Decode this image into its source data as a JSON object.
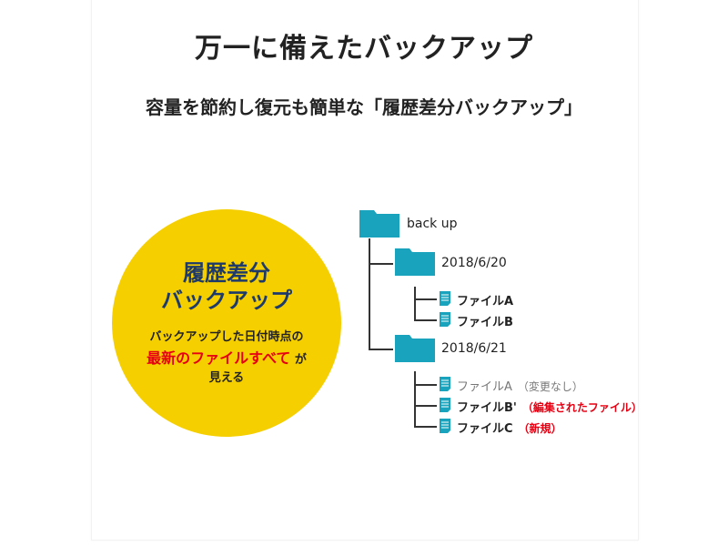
{
  "title": "万一に備えたバックアップ",
  "subtitle": "容量を節約し復元も簡単な「履歴差分バックアップ」",
  "circle": {
    "heading_line1": "履歴差分",
    "heading_line2": "バックアップ",
    "text_line1": "バックアップした日付時点の",
    "text_highlight": "最新のファイルすべて",
    "text_after_highlight": "が",
    "text_line3": "見える"
  },
  "tree": {
    "root": "back up",
    "folders": [
      {
        "name": "2018/6/20",
        "files": [
          {
            "name": "ファイルA",
            "note": ""
          },
          {
            "name": "ファイルB",
            "note": ""
          }
        ]
      },
      {
        "name": "2018/6/21",
        "files": [
          {
            "name": "ファイルA",
            "note": "（変更なし）"
          },
          {
            "name": "ファイルB'",
            "note": "（編集されたファイル）"
          },
          {
            "name": "ファイルC",
            "note": "（新規）"
          }
        ]
      }
    ]
  },
  "colors": {
    "folder": "#1aa3bd",
    "circle": "#f5cf00",
    "heading": "#1e3a6b",
    "highlight": "#e60012"
  }
}
